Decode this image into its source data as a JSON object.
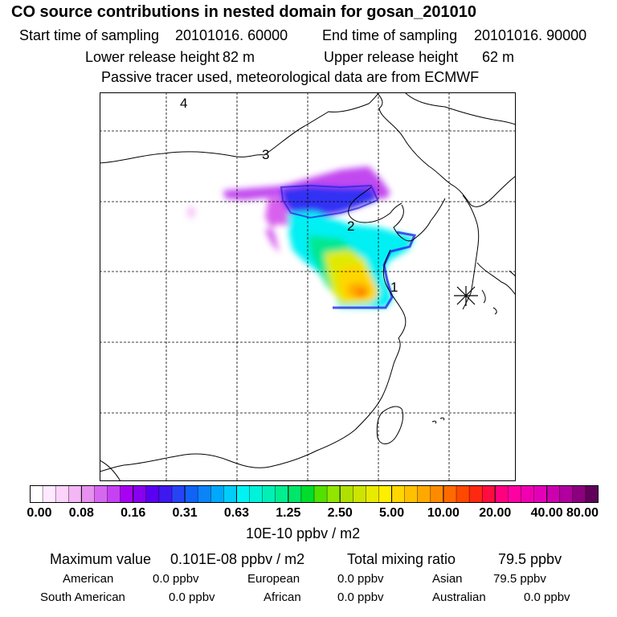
{
  "header": {
    "title": "CO  source contributions in nested domain for gosan_201010",
    "start_label": "Start time of sampling",
    "start_value": "20101016. 60000",
    "end_label": "End time of sampling",
    "end_value": "20101016. 90000",
    "lower_label": "Lower release height",
    "lower_value": "82 m",
    "upper_label": "Upper release height",
    "upper_value": "62 m",
    "note": "Passive tracer used, meteorological data are from ECMWF"
  },
  "map": {
    "time_markers": [
      "1",
      "2",
      "3",
      "4"
    ],
    "receptor_symbol": "star-icon"
  },
  "colorbar": {
    "ticks": [
      "0.00",
      "0.08",
      "0.16",
      "0.31",
      "0.63",
      "1.25",
      "2.50",
      "5.00",
      "10.00",
      "20.00",
      "40.00",
      "80.00"
    ],
    "unit": "10E-10 ppbv / m2",
    "colors": [
      "#ffffff",
      "#ffe9ff",
      "#fbd3fb",
      "#f3b7f5",
      "#e890f0",
      "#d568f0",
      "#c640f4",
      "#a800f2",
      "#8800ee",
      "#5a00f2",
      "#3f18f0",
      "#2644f6",
      "#1063f6",
      "#0a84f8",
      "#00a8fb",
      "#00cdfa",
      "#00f3f4",
      "#00f3d8",
      "#00f0b5",
      "#00ee90",
      "#00e66a",
      "#00dd2a",
      "#52e000",
      "#90e600",
      "#b0e000",
      "#cde400",
      "#e8ea00",
      "#ffee00",
      "#ffd600",
      "#ffc000",
      "#ffa800",
      "#ff8a00",
      "#ff6a00",
      "#ff4800",
      "#ff2810",
      "#ff0c40",
      "#ff0080",
      "#ff00a2",
      "#f000b2",
      "#e200b8",
      "#cc00ae",
      "#b0009e",
      "#8c007e",
      "#60005a"
    ]
  },
  "summary": {
    "max_label": "Maximum value",
    "max_value": "0.101E-08 ppbv / m2",
    "total_label": "Total mixing ratio",
    "total_value": "79.5 ppbv"
  },
  "regions": [
    {
      "name": "American",
      "value": "0.0 ppbv"
    },
    {
      "name": "European",
      "value": "0.0 ppbv"
    },
    {
      "name": "Asian",
      "value": "79.5 ppbv"
    },
    {
      "name": "South American",
      "value": "0.0 ppbv"
    },
    {
      "name": "African",
      "value": "0.0 ppbv"
    },
    {
      "name": "Australian",
      "value": "0.0 ppbv"
    }
  ]
}
